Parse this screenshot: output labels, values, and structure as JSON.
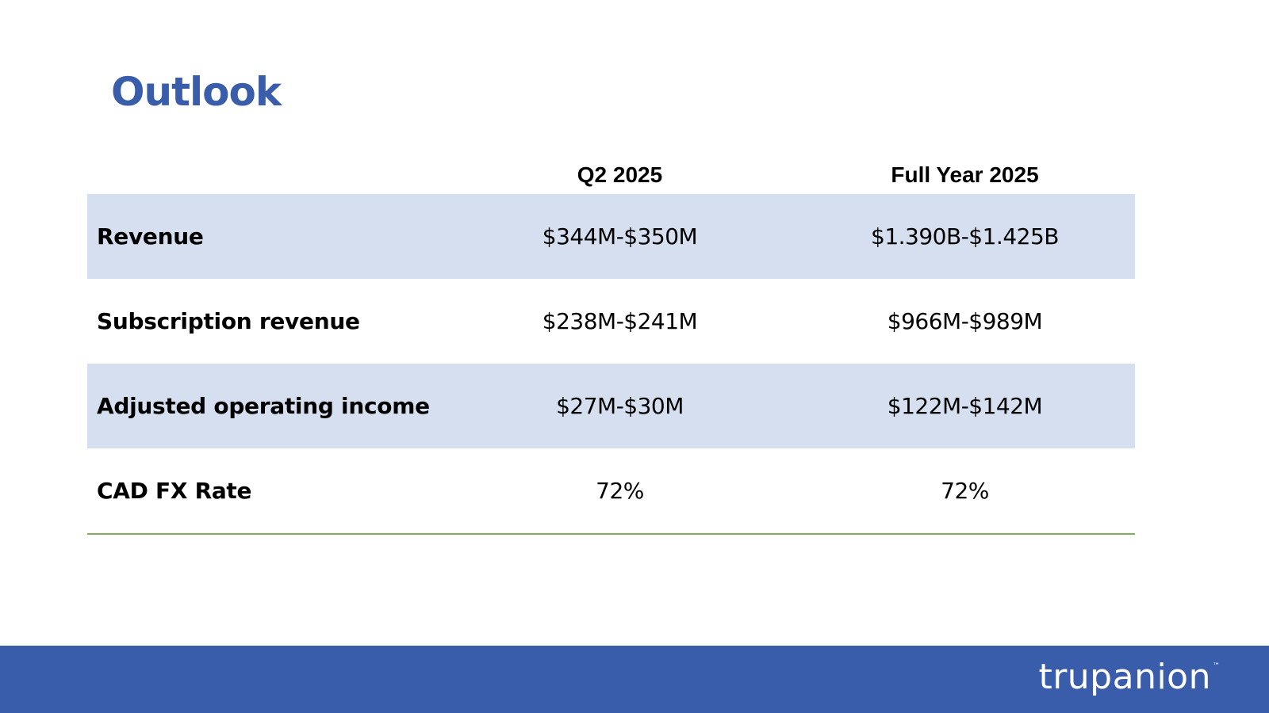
{
  "slide": {
    "title": "Outlook"
  },
  "table": {
    "headers": [
      "",
      "Q2 2025",
      "Full Year 2025"
    ],
    "rows": [
      {
        "label": "Revenue",
        "q2": "$344M-$350M",
        "fy": "$1.390B-$1.425B"
      },
      {
        "label": "Subscription revenue",
        "q2": "$238M-$241M",
        "fy": "$966M-$989M"
      },
      {
        "label": "Adjusted operating income",
        "q2": "$27M-$30M",
        "fy": "$122M-$142M"
      },
      {
        "label": "CAD FX Rate",
        "q2": "72%",
        "fy": "72%"
      }
    ]
  },
  "footer": {
    "logo_text": "trupanion",
    "trademark": "™"
  },
  "colors": {
    "title": "#3a5dab",
    "footer": "#3a5dab",
    "row_shade": "#d5dff0",
    "rule": "#7fb05a"
  }
}
